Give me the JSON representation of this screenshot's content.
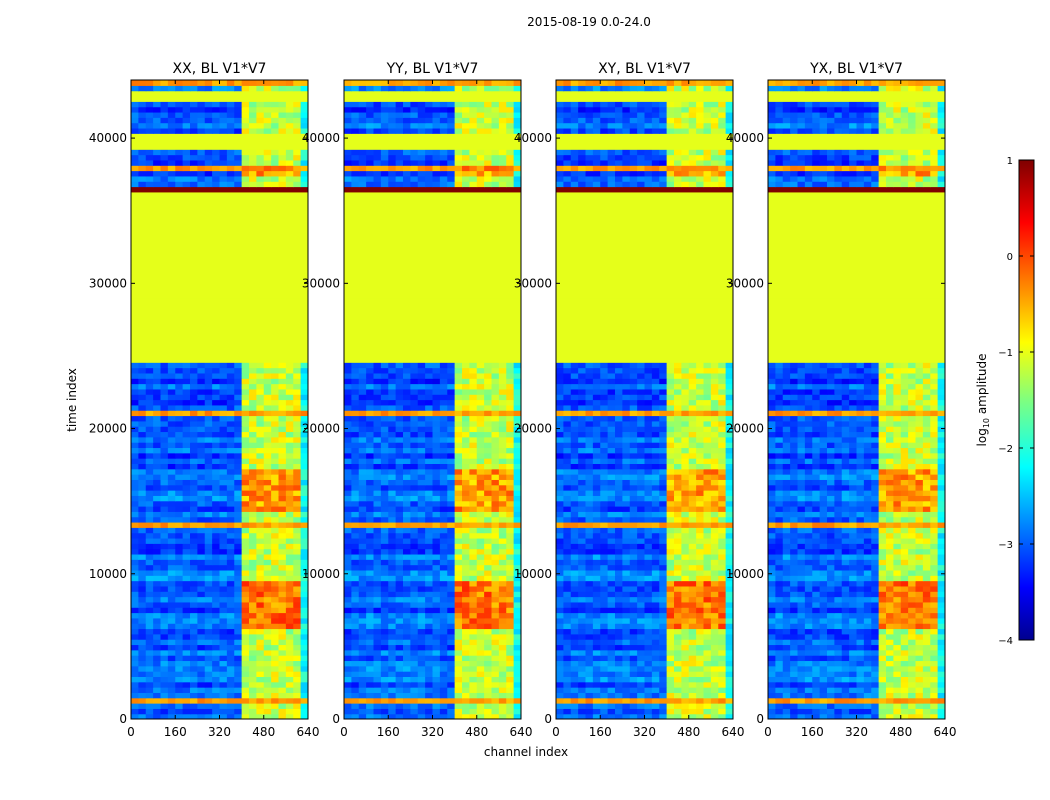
{
  "figure": {
    "suptitle": "2015-08-19 0.0-24.0"
  },
  "chart_data": {
    "type": "heatmap",
    "title": "2015-08-19 0.0-24.0",
    "xlabel": "channel index",
    "ylabel": "time index",
    "xlim": [
      0,
      640
    ],
    "ylim": [
      0,
      44000
    ],
    "xticks": [
      "0",
      "160",
      "320",
      "480",
      "640"
    ],
    "yticks": [
      "0",
      "10000",
      "20000",
      "30000",
      "40000"
    ],
    "panels": [
      {
        "title": "XX, BL V1*V7",
        "band_start": 405,
        "band_end": 600
      },
      {
        "title": "YY, BL V1*V7",
        "band_start": 405,
        "band_end": 600
      },
      {
        "title": "XY, BL V1*V7",
        "band_start": 405,
        "band_end": 600
      },
      {
        "title": "YX, BL V1*V7",
        "band_start": 405,
        "band_end": 600
      }
    ],
    "flat_regions": [
      {
        "t_start": 24700,
        "t_end": 36300,
        "log10_amplitude": -1.0
      },
      {
        "t_start": 39400,
        "t_end": 40300,
        "log10_amplitude": -1.0
      },
      {
        "t_start": 42700,
        "t_end": 43200,
        "log10_amplitude": -1.0
      }
    ],
    "saturated_rows": [
      {
        "t_start": 36200,
        "t_end": 36600,
        "log10_amplitude": 1.0
      }
    ],
    "bright_blocks": [
      {
        "t_start": 6400,
        "t_end": 9400,
        "log10_amplitude": 0.2
      },
      {
        "t_start": 14400,
        "t_end": 17200,
        "log10_amplitude": 0.0
      },
      {
        "t_start": 37300,
        "t_end": 38300,
        "log10_amplitude": 0.0
      }
    ],
    "colorbar": {
      "label": "log10 amplitude",
      "label_text": "log",
      "label_sub": "10",
      "label_rest": " amplitude",
      "range": [
        -4,
        1
      ],
      "ticks": [
        "1",
        "0",
        "−1",
        "−2",
        "−3",
        "−4"
      ],
      "colormap": "jet"
    }
  }
}
